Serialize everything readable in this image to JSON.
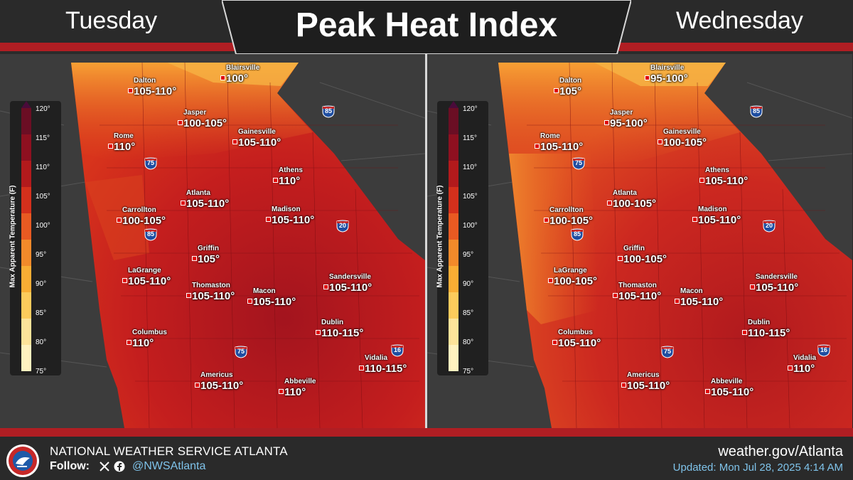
{
  "title": "Peak Heat Index",
  "colors": {
    "accent_red": "#b01e23",
    "bar": "#2a2a2a",
    "link": "#7fc3ea"
  },
  "legend": {
    "title": "Max Apparent Temperature (F)",
    "ticks": [
      "120°",
      "115°",
      "110°",
      "105°",
      "100°",
      "95°",
      "90°",
      "85°",
      "80°",
      "75°"
    ]
  },
  "panels": [
    {
      "day": "Tuesday",
      "cities": [
        {
          "name": "Blairsville",
          "value": "100°"
        },
        {
          "name": "Dalton",
          "value": "105-110°"
        },
        {
          "name": "Jasper",
          "value": "100-105°"
        },
        {
          "name": "Rome",
          "value": "110°"
        },
        {
          "name": "Gainesville",
          "value": "105-110°"
        },
        {
          "name": "Athens",
          "value": "110°"
        },
        {
          "name": "Atlanta",
          "value": "105-110°"
        },
        {
          "name": "Carrollton",
          "value": "100-105°"
        },
        {
          "name": "Madison",
          "value": "105-110°"
        },
        {
          "name": "Griffin",
          "value": "105°"
        },
        {
          "name": "LaGrange",
          "value": "105-110°"
        },
        {
          "name": "Thomaston",
          "value": "105-110°"
        },
        {
          "name": "Macon",
          "value": "105-110°"
        },
        {
          "name": "Sandersville",
          "value": "105-110°"
        },
        {
          "name": "Dublin",
          "value": "110-115°"
        },
        {
          "name": "Columbus",
          "value": "110°"
        },
        {
          "name": "Vidalia",
          "value": "110-115°"
        },
        {
          "name": "Americus",
          "value": "105-110°"
        },
        {
          "name": "Abbeville",
          "value": "110°"
        }
      ],
      "highways": [
        "85",
        "75",
        "85",
        "20",
        "75",
        "16"
      ]
    },
    {
      "day": "Wednesday",
      "cities": [
        {
          "name": "Blairsville",
          "value": "95-100°"
        },
        {
          "name": "Dalton",
          "value": "105°"
        },
        {
          "name": "Jasper",
          "value": "95-100°"
        },
        {
          "name": "Rome",
          "value": "105-110°"
        },
        {
          "name": "Gainesville",
          "value": "100-105°"
        },
        {
          "name": "Athens",
          "value": "105-110°"
        },
        {
          "name": "Atlanta",
          "value": "100-105°"
        },
        {
          "name": "Carrollton",
          "value": "100-105°"
        },
        {
          "name": "Madison",
          "value": "105-110°"
        },
        {
          "name": "Griffin",
          "value": "100-105°"
        },
        {
          "name": "LaGrange",
          "value": "100-105°"
        },
        {
          "name": "Thomaston",
          "value": "105-110°"
        },
        {
          "name": "Macon",
          "value": "105-110°"
        },
        {
          "name": "Sandersville",
          "value": "105-110°"
        },
        {
          "name": "Dublin",
          "value": "110-115°"
        },
        {
          "name": "Columbus",
          "value": "105-110°"
        },
        {
          "name": "Vidalia",
          "value": "110°"
        },
        {
          "name": "Americus",
          "value": "105-110°"
        },
        {
          "name": "Abbeville",
          "value": "105-110°"
        }
      ],
      "highways": [
        "85",
        "75",
        "85",
        "20",
        "75",
        "16"
      ]
    }
  ],
  "footer": {
    "org": "NATIONAL WEATHER SERVICE ATLANTA",
    "follow_label": "Follow:",
    "handle": "@NWSAtlanta",
    "site": "weather.gov/Atlanta",
    "updated": "Updated: Mon Jul 28, 2025 4:14 AM"
  }
}
